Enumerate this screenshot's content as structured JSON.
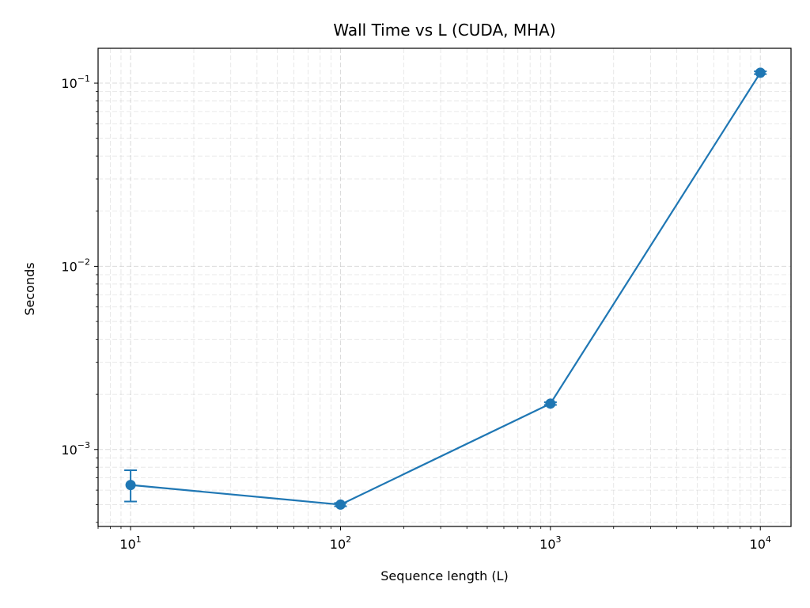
{
  "chart_data": {
    "type": "line",
    "title": "Wall Time vs L (CUDA, MHA)",
    "xlabel": "Sequence length (L)",
    "ylabel": "Seconds",
    "xscale": "log",
    "yscale": "log",
    "xlim": [
      7,
      14000
    ],
    "ylim": [
      0.00038,
      0.155
    ],
    "grid": true,
    "grid_minor": true,
    "color": "#1f77b4",
    "x_ticks": [
      {
        "base": "10",
        "exp": "1",
        "value": 10
      },
      {
        "base": "10",
        "exp": "2",
        "value": 100
      },
      {
        "base": "10",
        "exp": "3",
        "value": 1000
      },
      {
        "base": "10",
        "exp": "4",
        "value": 10000
      }
    ],
    "y_ticks": [
      {
        "base": "10",
        "exp": "−3",
        "value": 0.001
      },
      {
        "base": "10",
        "exp": "−2",
        "value": 0.01
      },
      {
        "base": "10",
        "exp": "−1",
        "value": 0.1
      }
    ],
    "series": [
      {
        "x": [
          10,
          100,
          1000,
          10000
        ],
        "y": [
          0.00064,
          0.0005,
          0.00178,
          0.114
        ],
        "err_low": [
          0.00052,
          0.00049,
          0.00175,
          0.112
        ],
        "err_high": [
          0.00077,
          0.00051,
          0.00181,
          0.116
        ]
      }
    ]
  }
}
